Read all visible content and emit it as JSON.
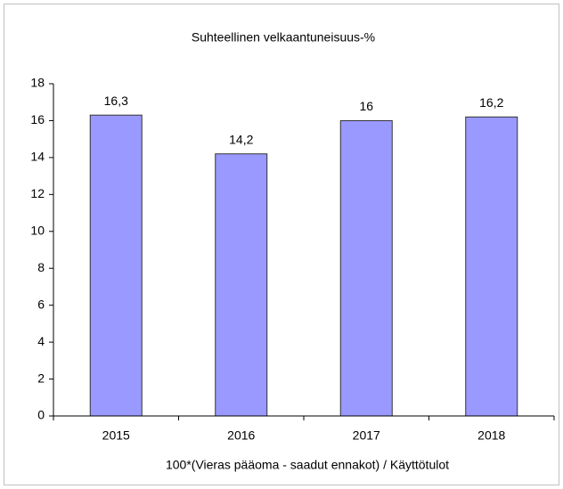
{
  "chart_data": {
    "type": "bar",
    "title": "Suhteellinen velkaantuneisuus-%",
    "x_label": "100*(Vieras pääoma - saadut ennakot) / Käyttötulot",
    "categories": [
      "2015",
      "2016",
      "2017",
      "2018"
    ],
    "values": [
      16.3,
      14.2,
      16,
      16.2
    ],
    "value_labels": [
      "16,3",
      "14,2",
      "16",
      "16,2"
    ],
    "color": "#9999ff",
    "ylim": [
      0,
      18
    ],
    "yticks": [
      0,
      2,
      4,
      6,
      8,
      10,
      12,
      14,
      16,
      18
    ],
    "grid": false
  }
}
